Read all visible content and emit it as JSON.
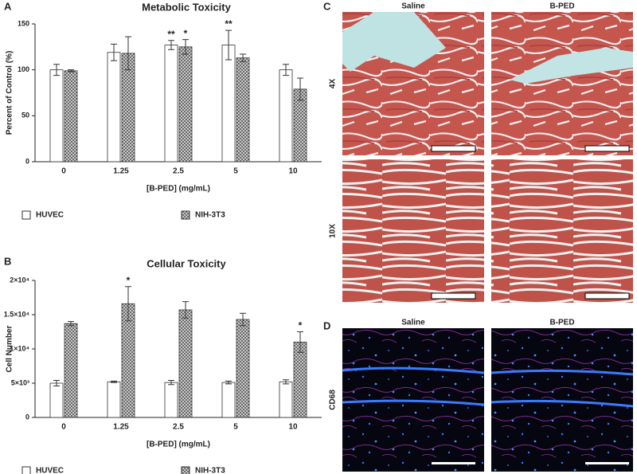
{
  "chart_data": [
    {
      "type": "bar",
      "title": "Metabolic Toxicity",
      "x_label": "[B-PED] (mg/mL)",
      "y_label": "Percent of Control (%)",
      "categories": [
        "0",
        "1.25",
        "2.5",
        "5",
        "10"
      ],
      "series": [
        {
          "name": "HUVEC",
          "color": "#ffffff",
          "hatch": false,
          "values": [
            100,
            119,
            127,
            127,
            100
          ],
          "errors": [
            6,
            9,
            5,
            16,
            6
          ],
          "significance": [
            null,
            null,
            "**",
            "**",
            null
          ]
        },
        {
          "name": "NIH-3T3",
          "color": "#9a9a9a",
          "hatch": true,
          "values": [
            99,
            118,
            125,
            113,
            79
          ],
          "errors": [
            1,
            18,
            8,
            4,
            12
          ],
          "significance": [
            null,
            null,
            "*",
            null,
            null
          ]
        }
      ],
      "ylim": [
        0,
        150
      ],
      "yticks": [
        0,
        50,
        100,
        150
      ],
      "legend": "bottom"
    },
    {
      "type": "bar",
      "title": "Cellular Toxicity",
      "x_label": "[B-PED] (mg/mL)",
      "y_label": "Cell Number",
      "categories": [
        "0",
        "1.25",
        "2.5",
        "5",
        "10"
      ],
      "series": [
        {
          "name": "HUVEC",
          "color": "#ffffff",
          "hatch": false,
          "values": [
            5000,
            5200,
            5100,
            5100,
            5200
          ],
          "errors": [
            400,
            100,
            300,
            200,
            300
          ],
          "significance": [
            null,
            null,
            null,
            null,
            null
          ]
        },
        {
          "name": "NIH-3T3",
          "color": "#9a9a9a",
          "hatch": true,
          "values": [
            13700,
            16600,
            15700,
            14300,
            11000
          ],
          "errors": [
            300,
            2500,
            1200,
            900,
            1500
          ],
          "significance": [
            null,
            "*",
            null,
            null,
            "*"
          ]
        }
      ],
      "ylim": [
        0,
        20000
      ],
      "yticks": [
        0,
        {
          "value": 5000,
          "label": "5×10³"
        },
        {
          "value": 10000,
          "label": "1×10⁴"
        },
        {
          "value": 15000,
          "label": "1.5×10⁴"
        },
        {
          "value": 20000,
          "label": "2×10⁴"
        }
      ],
      "legend": "bottom"
    }
  ],
  "panels": {
    "labels": [
      "A",
      "B",
      "C",
      "D"
    ]
  },
  "histology": {
    "columns": [
      "Saline",
      "B-PED"
    ],
    "rows": [
      "4X",
      "10X"
    ]
  },
  "immunostain": {
    "columns": [
      "Saline",
      "B-PED"
    ],
    "row": "CD68"
  }
}
